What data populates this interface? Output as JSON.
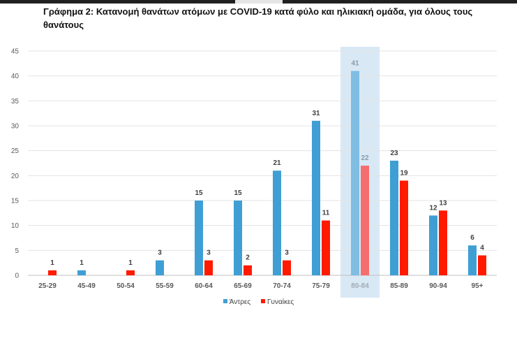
{
  "title": "Γράφημα 2: Κατανομή θανάτων ατόμων με COVID-19 κατά φύλο και ηλικιακή ομάδα, για όλους τους θανάτους",
  "colors": {
    "men": "#3f9fd4",
    "women": "#ff1a00",
    "highlight": "#d9e8f5",
    "grid": "#e3e3e3"
  },
  "chart_data": {
    "type": "bar",
    "title": "Γράφημα 2: Κατανομή θανάτων ατόμων με COVID-19 κατά φύλο και ηλικιακή ομάδα, για όλους τους θανάτους",
    "xlabel": "",
    "ylabel": "",
    "ylim": [
      0,
      45
    ],
    "yticks": [
      0,
      5,
      10,
      15,
      20,
      25,
      30,
      35,
      40,
      45
    ],
    "grid": true,
    "legend_position": "bottom",
    "highlighted_category": "80-84",
    "categories": [
      "25-29",
      "45-49",
      "50-54",
      "55-59",
      "60-64",
      "65-69",
      "70-74",
      "75-79",
      "80-84",
      "85-89",
      "90-94",
      "95+"
    ],
    "series": [
      {
        "name": "Άντρες",
        "values": [
          null,
          1,
          null,
          3,
          15,
          15,
          21,
          31,
          41,
          23,
          12,
          6
        ]
      },
      {
        "name": "Γυναίκες",
        "values": [
          1,
          null,
          1,
          null,
          3,
          2,
          3,
          11,
          22,
          19,
          13,
          4
        ]
      }
    ]
  }
}
